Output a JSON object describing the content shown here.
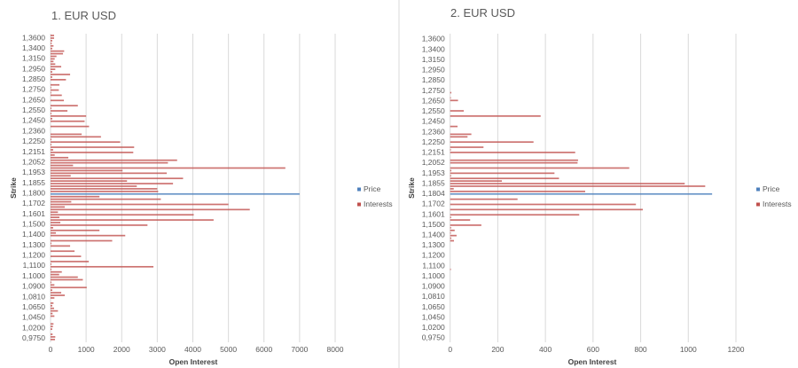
{
  "chart_data": [
    {
      "type": "bar",
      "orientation": "horizontal",
      "title": "1. EUR USD",
      "xlabel": "Open Interest",
      "ylabel": "Strike",
      "xlim": [
        0,
        8000
      ],
      "x_ticks": [
        "0",
        "1000",
        "2000",
        "3000",
        "4000",
        "5000",
        "6000",
        "7000",
        "8000"
      ],
      "y_tick_labels": [
        "1,3600",
        "1,3400",
        "1,3150",
        "1,2950",
        "1,2850",
        "1,2750",
        "1,2650",
        "1,2550",
        "1,2450",
        "1,2360",
        "1,2250",
        "1,2151",
        "1,2052",
        "1,1953",
        "1,1855",
        "1,1800",
        "1,1702",
        "1,1601",
        "1,1500",
        "1,1400",
        "1,1300",
        "1,1200",
        "1,1100",
        "1,1000",
        "1,0900",
        "1,0810",
        "1,0650",
        "1,0450",
        "1,0200",
        "0,9750"
      ],
      "grid": "vertical",
      "legend": "right",
      "series": [
        {
          "name": "Price",
          "color": "#4f81bd",
          "values": [
            null,
            null,
            null,
            null,
            null,
            null,
            null,
            null,
            null,
            null,
            null,
            null,
            null,
            null,
            null,
            null,
            null,
            null,
            null,
            null,
            null,
            null,
            null,
            null,
            null,
            null,
            null,
            null,
            null,
            null,
            null,
            null,
            null,
            null,
            null,
            null,
            null,
            null,
            null,
            null,
            null,
            null,
            null,
            null,
            null,
            null,
            null,
            null,
            null,
            null,
            null,
            null,
            null,
            null,
            null,
            null,
            null,
            null,
            null,
            null,
            null,
            7000,
            null,
            null,
            null,
            null,
            null,
            null,
            null,
            null,
            null,
            null,
            null,
            null,
            null,
            null,
            null,
            null,
            null,
            null,
            null,
            null,
            null,
            null,
            null,
            null,
            null,
            null,
            null,
            null,
            null,
            null,
            null,
            null,
            null,
            null,
            null,
            null,
            null,
            null,
            null,
            null,
            null,
            null,
            null,
            null,
            null,
            null,
            null,
            null,
            null,
            null,
            null,
            null,
            null,
            null,
            null,
            null
          ]
        },
        {
          "name": "Interests",
          "color": "#c0504d",
          "values": [
            100,
            100,
            50,
            33,
            83,
            50,
            383,
            350,
            167,
            117,
            83,
            133,
            300,
            133,
            50,
            550,
            50,
            433,
            0,
            250,
            17,
            233,
            17,
            317,
            0,
            375,
            0,
            767,
            25,
            475,
            25,
            1000,
            50,
            958,
            0,
            1083,
            0,
            0,
            875,
            1417,
            25,
            1958,
            25,
            2350,
            75,
            2325,
            117,
            500,
            3558,
            3300,
            633,
            6600,
            2025,
            3267,
            567,
            3725,
            2150,
            3442,
            2425,
            3000,
            3025,
            0,
            1375,
            3100,
            583,
            5000,
            400,
            5600,
            208,
            4025,
            250,
            4583,
            275,
            2725,
            75,
            1375,
            150,
            2100,
            0,
            1733,
            25,
            550,
            0,
            675,
            0,
            858,
            0,
            1075,
            25,
            2892,
            25,
            317,
            242,
            767,
            908,
            25,
            108,
            1017,
            50,
            300,
            400,
            108,
            0,
            83,
            50,
            100,
            208,
            58,
            108,
            0,
            0,
            83,
            67,
            50,
            0,
            58,
            133,
            125
          ]
        }
      ]
    },
    {
      "type": "bar",
      "orientation": "horizontal",
      "title": "2. EUR USD",
      "xlabel": "Open Interest",
      "ylabel": "Strike",
      "xlim": [
        0,
        1200
      ],
      "x_ticks": [
        "0",
        "200",
        "400",
        "600",
        "800",
        "1000",
        "1200"
      ],
      "y_tick_labels": [
        "1,3600",
        "1,3400",
        "1,3150",
        "1,2950",
        "1,2850",
        "1,2750",
        "1,2650",
        "1,2550",
        "1,2450",
        "1,2360",
        "1,2250",
        "1,2151",
        "1,2052",
        "1,1953",
        "1,1855",
        "1,1804",
        "1,1702",
        "1,1601",
        "1,1500",
        "1,1400",
        "1,1300",
        "1,1200",
        "1,1100",
        "1,1000",
        "1,0900",
        "1,0810",
        "1,0650",
        "1,0450",
        "1,0200",
        "0,9750"
      ],
      "grid": "vertical",
      "legend": "right",
      "series": [
        {
          "name": "Price",
          "color": "#4f81bd",
          "values": [
            null,
            null,
            null,
            null,
            null,
            null,
            null,
            null,
            null,
            null,
            null,
            null,
            null,
            null,
            null,
            null,
            null,
            null,
            null,
            null,
            null,
            null,
            null,
            null,
            null,
            null,
            null,
            null,
            null,
            null,
            null,
            null,
            null,
            null,
            null,
            null,
            null,
            null,
            null,
            null,
            null,
            null,
            null,
            null,
            null,
            null,
            null,
            null,
            null,
            null,
            null,
            null,
            null,
            null,
            null,
            null,
            null,
            null,
            null,
            null,
            null,
            1100,
            null,
            null,
            null,
            null,
            null,
            null,
            null,
            null,
            null,
            null,
            null,
            null,
            null,
            null,
            null,
            null,
            null,
            null,
            null,
            null,
            null,
            null,
            null,
            null,
            null,
            null,
            null,
            null,
            null,
            null,
            null,
            null,
            null,
            null,
            null,
            null,
            null,
            null,
            null,
            null,
            null,
            null,
            null,
            null,
            null,
            null,
            null,
            null,
            null,
            null,
            null,
            null,
            null,
            null,
            null,
            null
          ]
        },
        {
          "name": "Interests",
          "color": "#c0504d",
          "values": [
            0,
            0,
            0,
            0,
            0,
            0,
            0,
            0,
            0,
            0,
            0,
            0,
            0,
            0,
            0,
            0,
            0,
            0,
            0,
            0,
            0,
            0,
            5,
            0,
            3,
            33,
            0,
            0,
            0,
            57,
            0,
            380,
            0,
            0,
            0,
            31,
            0,
            0,
            89,
            73,
            0,
            350,
            0,
            140,
            3,
            525,
            0,
            0,
            537,
            535,
            0,
            752,
            5,
            438,
            4,
            457,
            217,
            985,
            1071,
            15,
            567,
            0,
            0,
            283,
            0,
            780,
            0,
            809,
            0,
            542,
            4,
            84,
            0,
            131,
            4,
            19,
            3,
            27,
            5,
            16,
            0,
            0,
            0,
            0,
            0,
            0,
            0,
            0,
            0,
            0,
            3,
            0,
            0,
            0,
            0,
            0,
            0,
            0,
            0,
            0,
            0,
            0,
            0,
            0,
            0,
            0,
            0,
            0,
            0,
            0,
            0,
            0,
            0,
            0,
            0,
            0,
            0,
            0
          ]
        }
      ]
    }
  ]
}
